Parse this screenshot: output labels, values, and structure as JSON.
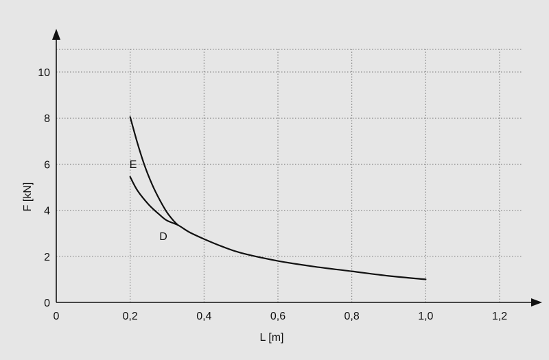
{
  "chart_data": {
    "type": "line",
    "xlabel": "L [m]",
    "ylabel": "F [kN]",
    "xlim": [
      0,
      1.2
    ],
    "ylim": [
      0,
      10
    ],
    "x_ticks": [
      "0",
      "0,2",
      "0,4",
      "0,6",
      "0,8",
      "1,0",
      "1,2"
    ],
    "y_ticks": [
      "0",
      "2",
      "4",
      "6",
      "8",
      "10"
    ],
    "grid": true,
    "series": [
      {
        "name": "D",
        "x": [
          0.2,
          0.22,
          0.25,
          0.28,
          0.3,
          0.33,
          0.36,
          0.4,
          0.45,
          0.5,
          0.6,
          0.7,
          0.8,
          0.9,
          1.0
        ],
        "y": [
          5.45,
          4.85,
          4.25,
          3.8,
          3.55,
          3.35,
          3.05,
          2.75,
          2.42,
          2.15,
          1.8,
          1.55,
          1.35,
          1.15,
          1.0
        ]
      },
      {
        "name": "E",
        "x": [
          0.2,
          0.22,
          0.24,
          0.26,
          0.28,
          0.3,
          0.32,
          0.33
        ],
        "y": [
          8.05,
          6.9,
          5.9,
          5.1,
          4.45,
          3.9,
          3.5,
          3.35
        ]
      }
    ]
  }
}
